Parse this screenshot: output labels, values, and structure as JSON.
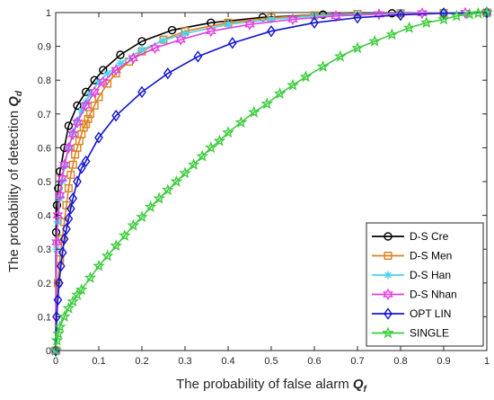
{
  "chart_data": {
    "type": "line",
    "xlabel": {
      "text": "The probability of false alarm ",
      "sym": "Q",
      "sub": "f"
    },
    "ylabel": {
      "text": "The probability of detection ",
      "sym": "Q",
      "sub": "d"
    },
    "xlim": [
      0,
      1
    ],
    "ylim": [
      0,
      1
    ],
    "xticks": [
      "0",
      "0.1",
      "0.2",
      "0.3",
      "0.4",
      "0.5",
      "0.6",
      "0.7",
      "0.8",
      "0.9",
      "1"
    ],
    "yticks": [
      "0",
      "0.1",
      "0.2",
      "0.3",
      "0.4",
      "0.5",
      "0.6",
      "0.7",
      "0.8",
      "0.9",
      "1"
    ],
    "grid": false,
    "legend_position": "bottom-right",
    "series": [
      {
        "name": "D-S Cre",
        "color": "#000000",
        "marker": "circle",
        "x": [
          0,
          0.001,
          0.003,
          0.006,
          0.01,
          0.02,
          0.03,
          0.05,
          0.07,
          0.09,
          0.11,
          0.15,
          0.2,
          0.27,
          0.36,
          0.48,
          0.62,
          0.78,
          0.9,
          1
        ],
        "y": [
          0,
          0.35,
          0.43,
          0.48,
          0.53,
          0.6,
          0.665,
          0.725,
          0.765,
          0.8,
          0.83,
          0.875,
          0.915,
          0.948,
          0.97,
          0.986,
          0.994,
          0.998,
          0.999,
          1
        ]
      },
      {
        "name": "D-S Men",
        "color": "#D9821B",
        "marker": "square",
        "x": [
          0,
          0.005,
          0.01,
          0.015,
          0.02,
          0.025,
          0.03,
          0.035,
          0.04,
          0.045,
          0.05,
          0.055,
          0.06,
          0.065,
          0.07,
          0.075,
          0.08,
          0.09,
          0.1,
          0.12,
          0.14,
          0.17,
          0.2,
          0.25,
          0.3,
          0.4,
          0.5,
          0.6,
          0.7,
          0.8,
          0.9,
          1
        ],
        "y": [
          0,
          0.2,
          0.27,
          0.33,
          0.38,
          0.43,
          0.48,
          0.52,
          0.55,
          0.58,
          0.6,
          0.62,
          0.64,
          0.66,
          0.67,
          0.685,
          0.7,
          0.725,
          0.75,
          0.79,
          0.82,
          0.855,
          0.885,
          0.92,
          0.945,
          0.97,
          0.985,
          0.992,
          0.996,
          0.998,
          0.999,
          1
        ]
      },
      {
        "name": "D-S Han",
        "color": "#4DD2F0",
        "marker": "asterisk",
        "x": [
          0,
          0.002,
          0.005,
          0.01,
          0.015,
          0.02,
          0.03,
          0.04,
          0.05,
          0.06,
          0.07,
          0.08,
          0.1,
          0.12,
          0.15,
          0.2,
          0.25,
          0.3,
          0.4,
          0.5,
          0.6,
          0.7,
          0.8,
          0.9,
          1
        ],
        "y": [
          0,
          0.3,
          0.38,
          0.45,
          0.5,
          0.545,
          0.6,
          0.645,
          0.68,
          0.71,
          0.735,
          0.76,
          0.795,
          0.82,
          0.85,
          0.89,
          0.918,
          0.938,
          0.965,
          0.98,
          0.99,
          0.995,
          0.998,
          0.999,
          1
        ]
      },
      {
        "name": "D-S Nhan",
        "color": "#E040E0",
        "marker": "hexagram",
        "x": [
          0,
          0.002,
          0.005,
          0.01,
          0.015,
          0.02,
          0.03,
          0.04,
          0.05,
          0.07,
          0.09,
          0.11,
          0.14,
          0.18,
          0.23,
          0.29,
          0.36,
          0.45,
          0.55,
          0.65,
          0.75,
          0.85,
          0.95,
          1
        ],
        "y": [
          0,
          0.32,
          0.4,
          0.46,
          0.51,
          0.55,
          0.6,
          0.64,
          0.675,
          0.725,
          0.765,
          0.795,
          0.83,
          0.865,
          0.895,
          0.92,
          0.945,
          0.965,
          0.98,
          0.99,
          0.995,
          0.998,
          0.999,
          1
        ]
      },
      {
        "name": "OPT LIN",
        "color": "#1414D0",
        "marker": "diamond",
        "x": [
          0,
          0.002,
          0.005,
          0.008,
          0.012,
          0.016,
          0.02,
          0.025,
          0.03,
          0.035,
          0.04,
          0.05,
          0.06,
          0.07,
          0.1,
          0.14,
          0.2,
          0.26,
          0.33,
          0.41,
          0.5,
          0.6,
          0.7,
          0.8,
          0.9,
          1
        ],
        "y": [
          0,
          0.1,
          0.15,
          0.2,
          0.25,
          0.29,
          0.33,
          0.36,
          0.39,
          0.42,
          0.45,
          0.5,
          0.54,
          0.56,
          0.63,
          0.695,
          0.765,
          0.82,
          0.87,
          0.91,
          0.945,
          0.97,
          0.985,
          0.993,
          0.998,
          1
        ]
      },
      {
        "name": "SINGLE",
        "color": "#3DCC3D",
        "marker": "pentagram",
        "x": [
          0,
          0.003,
          0.006,
          0.01,
          0.02,
          0.03,
          0.04,
          0.05,
          0.06,
          0.08,
          0.1,
          0.12,
          0.14,
          0.16,
          0.18,
          0.2,
          0.22,
          0.24,
          0.26,
          0.28,
          0.3,
          0.32,
          0.34,
          0.36,
          0.38,
          0.4,
          0.43,
          0.46,
          0.49,
          0.52,
          0.55,
          0.58,
          0.62,
          0.66,
          0.7,
          0.74,
          0.78,
          0.82,
          0.86,
          0.9,
          0.93,
          0.96,
          0.98,
          1
        ],
        "y": [
          0,
          0.03,
          0.05,
          0.07,
          0.1,
          0.125,
          0.145,
          0.165,
          0.18,
          0.215,
          0.25,
          0.28,
          0.31,
          0.34,
          0.37,
          0.395,
          0.425,
          0.45,
          0.475,
          0.5,
          0.525,
          0.55,
          0.575,
          0.6,
          0.62,
          0.645,
          0.675,
          0.705,
          0.73,
          0.76,
          0.785,
          0.81,
          0.84,
          0.87,
          0.895,
          0.915,
          0.935,
          0.955,
          0.97,
          0.98,
          0.99,
          0.995,
          0.998,
          1
        ]
      }
    ]
  }
}
